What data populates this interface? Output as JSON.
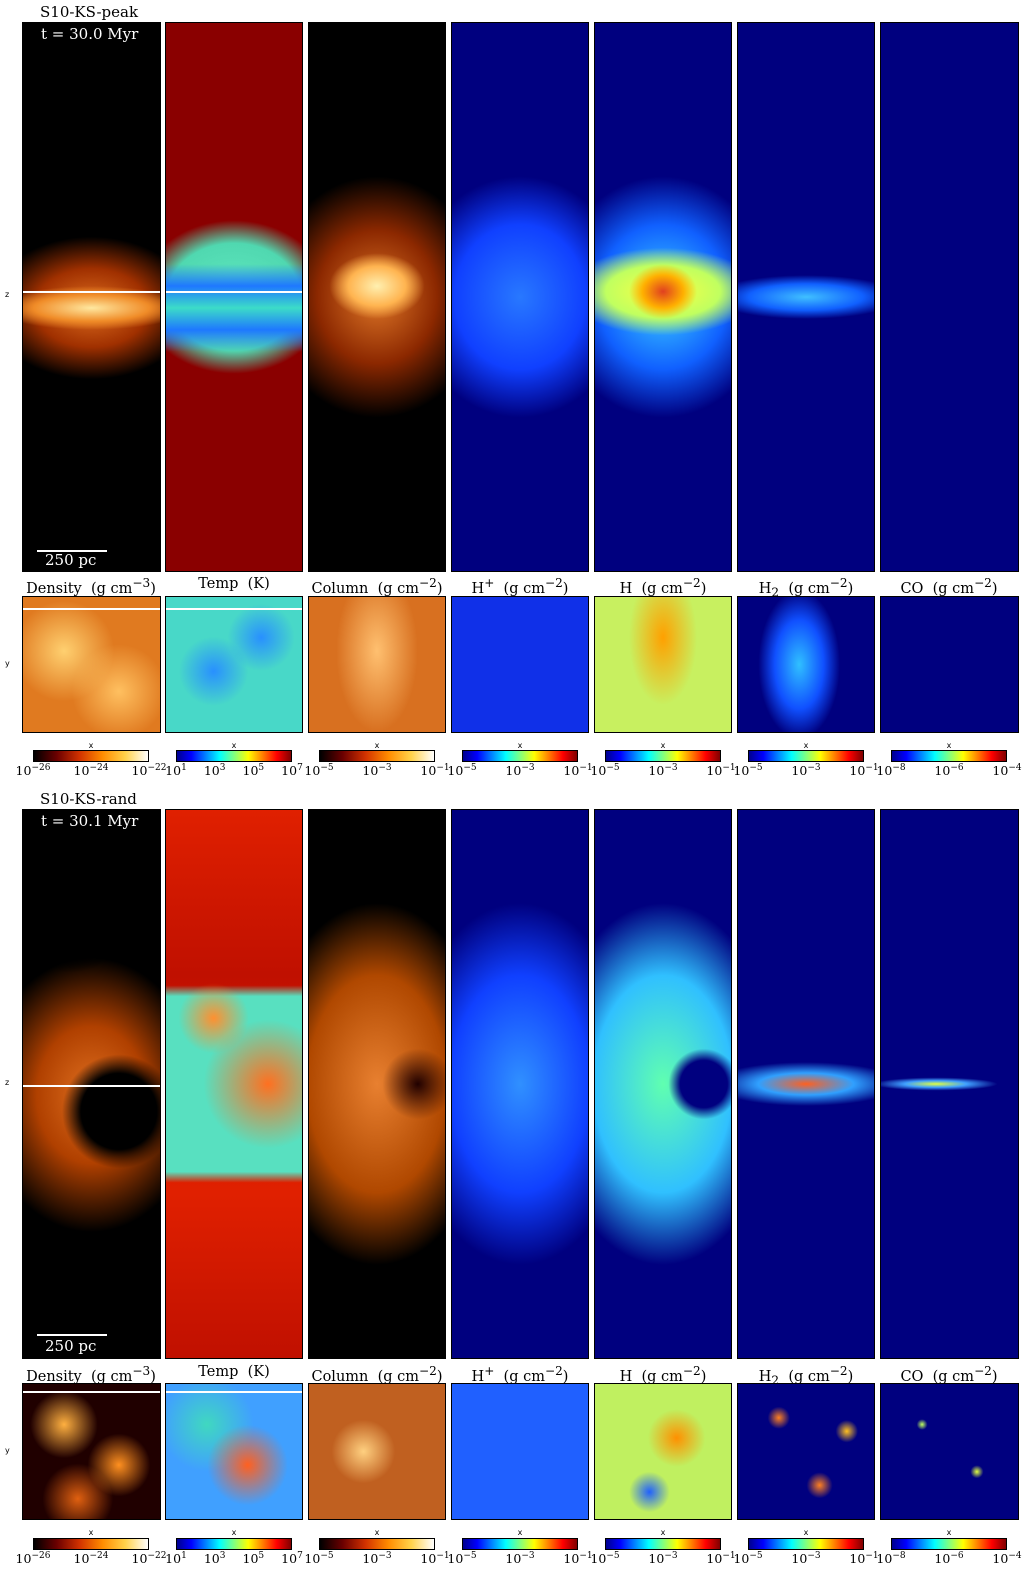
{
  "blocks": [
    {
      "title": "S10-KS-peak",
      "time": "t = 30.0 Myr",
      "scalebar": "250 pc",
      "side_axis": "z",
      "top_axis": "y",
      "cbar_axis": "x"
    },
    {
      "title": "S10-KS-rand",
      "time": "t = 30.1 Myr",
      "scalebar": "250 pc",
      "side_axis": "z",
      "top_axis": "y",
      "cbar_axis": "x"
    }
  ],
  "columns": [
    {
      "label_html": "Density&nbsp;&nbsp;(g cm<sup>−3</sup>)",
      "cmap": "hot",
      "ticks": [
        "10<sup>−26</sup>",
        "10<sup>−24</sup>",
        "10<sup>−22</sup>"
      ]
    },
    {
      "label_html": "Temp&nbsp;&nbsp;(K)",
      "cmap": "jet",
      "ticks": [
        "10<sup>1</sup>",
        "10<sup>3</sup>",
        "10<sup>5</sup>",
        "10<sup>7</sup>"
      ]
    },
    {
      "label_html": "Column&nbsp;&nbsp;(g cm<sup>−2</sup>)",
      "cmap": "hot",
      "ticks": [
        "10<sup>−5</sup>",
        "10<sup>−3</sup>",
        "10<sup>−1</sup>"
      ]
    },
    {
      "label_html": "H<sup>+</sup>&nbsp;&nbsp;(g cm<sup>−2</sup>)",
      "cmap": "jet",
      "ticks": [
        "10<sup>−5</sup>",
        "10<sup>−3</sup>",
        "10<sup>−1</sup>"
      ]
    },
    {
      "label_html": "H&nbsp;&nbsp;(g cm<sup>−2</sup>)",
      "cmap": "jet",
      "ticks": [
        "10<sup>−5</sup>",
        "10<sup>−3</sup>",
        "10<sup>−1</sup>"
      ]
    },
    {
      "label_html": "H<sub>2</sub>&nbsp;&nbsp;(g cm<sup>−2</sup>)",
      "cmap": "jet",
      "ticks": [
        "10<sup>−5</sup>",
        "10<sup>−3</sup>",
        "10<sup>−1</sup>"
      ]
    },
    {
      "label_html": "CO&nbsp;&nbsp;(g cm<sup>−2</sup>)",
      "cmap": "jet",
      "ticks": [
        "10<sup>−8</sup>",
        "10<sup>−6</sup>",
        "10<sup>−4</sup>"
      ]
    }
  ],
  "colors": {
    "hot": "linear-gradient(to right,#000000,#6b0000,#d23200,#ff8c00,#ffd24a,#ffffff)",
    "jet": "linear-gradient(to right,#00008f,#0000ff,#0080ff,#00ffff,#80ff80,#ffff00,#ff8000,#ff0000,#800000)",
    "navy": "#00007f",
    "darkred": "#800000"
  }
}
